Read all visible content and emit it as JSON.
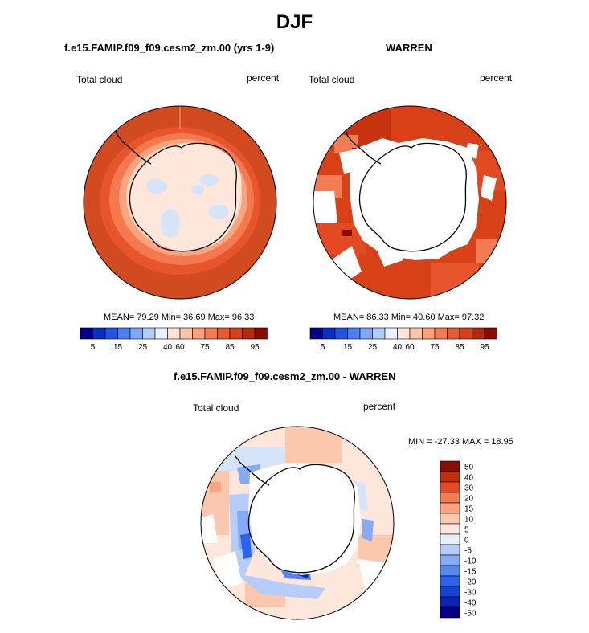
{
  "page_title": "DJF",
  "panels": {
    "model": {
      "title": "f.e15.FAMIP.f09_f09.cesm2_zm.00 (yrs 1-9)",
      "left_label": "Total cloud",
      "right_label": "percent",
      "stats": "MEAN= 79.29  Min= 36.69  Max= 96.33"
    },
    "obs": {
      "title": "WARREN",
      "left_label": "Total cloud",
      "right_label": "percent",
      "stats": "MEAN= 86.33  Min= 40.60  Max= 97.32"
    },
    "diff": {
      "title": "f.e15.FAMIP.f09_f09.cesm2_zm.00 - WARREN",
      "left_label": "Total cloud",
      "right_label": "percent",
      "stats": "MIN = -27.33 MAX =  18.95"
    }
  },
  "colorbar_abs": {
    "colors": [
      "#00008b",
      "#0a2ec2",
      "#2356e0",
      "#4d7ff0",
      "#7ea8f7",
      "#b2cdfa",
      "#e6f0fe",
      "#fde4d6",
      "#fcc4a8",
      "#fba07c",
      "#f47b52",
      "#ea5a32",
      "#d8401b",
      "#b32a0f",
      "#8b0c02"
    ],
    "tick_labels": [
      "5",
      "15",
      "25",
      "40",
      "60",
      "75",
      "85",
      "95"
    ]
  },
  "colorbar_diff": {
    "colors": [
      "#00008b",
      "#0b24b5",
      "#1443d8",
      "#2c62ec",
      "#5587f3",
      "#86abf6",
      "#b6cdfa",
      "#e6f0fe",
      "#fde6da",
      "#fcc8ad",
      "#fba27f",
      "#f47b52",
      "#e54a24",
      "#c32d0c",
      "#8b0c02"
    ],
    "tick_labels": [
      "50",
      "40",
      "30",
      "20",
      "15",
      "10",
      "5",
      "0",
      "-5",
      "-10",
      "-15",
      "-20",
      "-30",
      "-40",
      "-50"
    ]
  }
}
